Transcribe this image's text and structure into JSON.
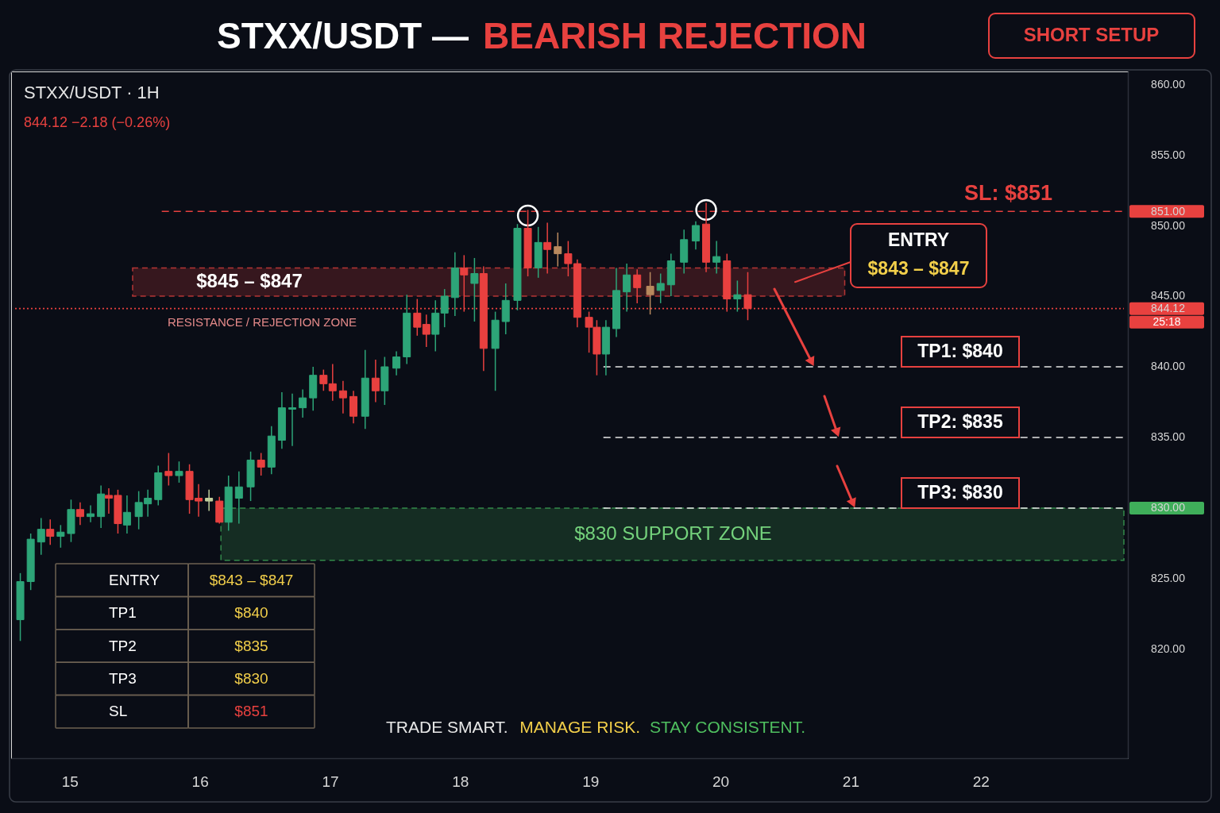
{
  "chart_data": {
    "type": "candlestick",
    "title": "STXX/USDT — BEARISH REJECTION",
    "subtitle": "STXX/USDT · 1H",
    "x": [
      14.62,
      14.7,
      14.78,
      14.85,
      14.93,
      15.01,
      15.08,
      15.16,
      15.24,
      15.3,
      15.37,
      15.44,
      15.53,
      15.6,
      15.68,
      15.76,
      15.84,
      15.92,
      15.99,
      16.07,
      16.15,
      16.22,
      16.3,
      16.39,
      16.47,
      16.55,
      16.63,
      16.71,
      16.79,
      16.87,
      16.95,
      17.02,
      17.1,
      17.18,
      17.27,
      17.35,
      17.42,
      17.51,
      17.59,
      17.67,
      17.74,
      17.81,
      17.88,
      17.96,
      18.03,
      18.11,
      18.18,
      18.27,
      18.35,
      18.44,
      18.52,
      18.6,
      18.67,
      18.75,
      18.83,
      18.9,
      18.99,
      19.05,
      19.12,
      19.2,
      19.28,
      19.36,
      19.46,
      19.54,
      19.62,
      19.72,
      19.81,
      19.89,
      19.97,
      20.05,
      20.13,
      20.21
    ],
    "ohlc": [
      [
        822.1,
        825.4,
        820.6,
        824.8
      ],
      [
        824.8,
        828.2,
        824.2,
        827.8
      ],
      [
        827.6,
        829.3,
        826.7,
        828.5
      ],
      [
        828.5,
        829.2,
        827.4,
        828.0
      ],
      [
        828.0,
        828.8,
        827.2,
        828.3
      ],
      [
        828.2,
        830.6,
        827.6,
        829.9
      ],
      [
        829.9,
        830.4,
        828.8,
        829.4
      ],
      [
        829.4,
        830.2,
        829.0,
        829.6
      ],
      [
        829.4,
        831.6,
        828.6,
        831.0
      ],
      [
        830.9,
        831.4,
        829.6,
        830.7
      ],
      [
        830.9,
        831.3,
        828.2,
        828.9
      ],
      [
        828.8,
        830.9,
        828.2,
        829.7
      ],
      [
        829.4,
        831.2,
        828.5,
        830.4
      ],
      [
        830.3,
        831.3,
        829.4,
        830.7
      ],
      [
        830.6,
        833.0,
        830.2,
        832.5
      ],
      [
        832.6,
        833.9,
        831.6,
        832.3
      ],
      [
        832.3,
        833.3,
        831.8,
        832.6
      ],
      [
        832.6,
        833.1,
        829.6,
        830.6
      ],
      [
        830.7,
        831.7,
        829.4,
        830.5
      ],
      [
        830.5,
        831.3,
        829.8,
        830.7
      ],
      [
        830.5,
        830.8,
        828.9,
        829.0
      ],
      [
        829.0,
        832.3,
        828.4,
        831.5
      ],
      [
        830.7,
        832.6,
        828.9,
        831.5
      ],
      [
        831.5,
        834.0,
        830.5,
        833.4
      ],
      [
        833.4,
        833.9,
        832.3,
        832.9
      ],
      [
        832.9,
        835.8,
        832.4,
        835.1
      ],
      [
        834.8,
        838.2,
        834.2,
        837.1
      ],
      [
        837.0,
        838.1,
        834.4,
        837.1
      ],
      [
        837.1,
        838.4,
        836.4,
        837.8
      ],
      [
        837.8,
        840.0,
        836.9,
        839.4
      ],
      [
        839.4,
        839.8,
        838.3,
        838.8
      ],
      [
        838.8,
        840.2,
        837.6,
        838.3
      ],
      [
        838.3,
        839.0,
        836.7,
        837.8
      ],
      [
        837.9,
        838.3,
        836.0,
        836.5
      ],
      [
        836.5,
        841.2,
        835.6,
        839.2
      ],
      [
        839.2,
        840.5,
        837.5,
        838.3
      ],
      [
        838.3,
        840.7,
        837.3,
        840.0
      ],
      [
        839.9,
        841.1,
        839.4,
        840.7
      ],
      [
        840.7,
        845.1,
        840.2,
        843.8
      ],
      [
        843.8,
        844.8,
        842.2,
        842.8
      ],
      [
        843.0,
        843.7,
        841.4,
        842.3
      ],
      [
        842.3,
        844.7,
        841.1,
        843.8
      ],
      [
        843.8,
        845.5,
        842.8,
        845.0
      ],
      [
        844.9,
        848.1,
        843.6,
        847.0
      ],
      [
        847.0,
        847.9,
        843.9,
        846.5
      ],
      [
        845.9,
        847.7,
        843.2,
        846.6
      ],
      [
        846.6,
        847.1,
        839.7,
        841.3
      ],
      [
        841.3,
        843.9,
        838.3,
        843.3
      ],
      [
        843.2,
        845.9,
        842.3,
        844.7
      ],
      [
        844.7,
        850.1,
        844.0,
        849.8
      ],
      [
        849.8,
        851.1,
        846.4,
        847.0
      ],
      [
        847.0,
        849.9,
        846.3,
        848.8
      ],
      [
        848.8,
        850.2,
        846.6,
        848.3
      ],
      [
        848.5,
        849.5,
        847.1,
        848.0
      ],
      [
        848.0,
        848.9,
        846.4,
        847.3
      ],
      [
        847.3,
        847.6,
        842.8,
        843.5
      ],
      [
        843.5,
        843.9,
        841.0,
        842.8
      ],
      [
        842.8,
        843.3,
        839.4,
        840.9
      ],
      [
        840.9,
        843.3,
        839.4,
        842.8
      ],
      [
        842.7,
        847.0,
        842.1,
        845.4
      ],
      [
        845.3,
        847.3,
        843.9,
        846.5
      ],
      [
        846.5,
        846.9,
        844.5,
        845.6
      ],
      [
        845.7,
        846.7,
        843.7,
        845.1
      ],
      [
        845.4,
        846.6,
        844.5,
        845.9
      ],
      [
        845.8,
        848.0,
        845.0,
        847.5
      ],
      [
        847.4,
        849.7,
        846.6,
        849.0
      ],
      [
        848.9,
        850.3,
        848.3,
        850.0
      ],
      [
        850.1,
        851.6,
        846.7,
        847.4
      ],
      [
        847.4,
        848.9,
        846.6,
        847.8
      ],
      [
        847.5,
        848.0,
        843.9,
        844.8
      ],
      [
        844.8,
        846.1,
        843.9,
        845.1
      ],
      [
        845.1,
        846.7,
        843.3,
        844.12
      ]
    ],
    "colors": [
      "#2da578",
      "#2da578",
      "#2da578",
      "#e8403f",
      "#2da578",
      "#2da578",
      "#e8403f",
      "#2da578",
      "#2da578",
      "#e8403f",
      "#e8403f",
      "#2da578",
      "#2da578",
      "#2da578",
      "#2da578",
      "#e8403f",
      "#2da578",
      "#e8403f",
      "#e8403f",
      "#c2cf9c",
      "#e8403f",
      "#2da578",
      "#2da578",
      "#2da578",
      "#e8403f",
      "#2da578",
      "#2da578",
      "#2da578",
      "#2da578",
      "#2da578",
      "#e8403f",
      "#e8403f",
      "#e8403f",
      "#e8403f",
      "#2da578",
      "#e8403f",
      "#2da578",
      "#2da578",
      "#2da578",
      "#e8403f",
      "#e8403f",
      "#2da578",
      "#2da578",
      "#2da578",
      "#e8403f",
      "#2da578",
      "#e8403f",
      "#2da578",
      "#2da578",
      "#2da578",
      "#e8403f",
      "#2da578",
      "#e8403f",
      "#b8895e",
      "#e8403f",
      "#e8403f",
      "#e8403f",
      "#e8403f",
      "#2da578",
      "#2da578",
      "#2da578",
      "#e8403f",
      "#b8895e",
      "#2da578",
      "#2da578",
      "#2da578",
      "#2da578",
      "#e8403f",
      "#2da578",
      "#e8403f",
      "#2da578",
      "#e8403f"
    ],
    "series": [
      {
        "type": "scatter",
        "x": [
          18.52,
          19.89
        ],
        "values": [
          850.7,
          851.1
        ],
        "color": "#ffffff"
      }
    ],
    "marker": "circle",
    "xlim": [
      14.58,
      23.1
    ],
    "xticks": [
      15,
      16,
      17,
      18,
      19,
      20,
      21,
      22
    ],
    "ylim": [
      812.3,
      860.9
    ],
    "yticks": [
      {
        "value": 820,
        "label": "820.00"
      },
      {
        "value": 825,
        "label": "825.00"
      },
      {
        "value": 830,
        "label": "830.00"
      },
      {
        "value": 835,
        "label": "835.00"
      },
      {
        "value": 840,
        "label": "840.00"
      },
      {
        "value": 844.12,
        "label": "844.12"
      },
      {
        "value": 845,
        "label": "845.00"
      },
      {
        "value": 850,
        "label": "850.00"
      },
      {
        "value": 851,
        "label": "851.00"
      },
      {
        "value": 855,
        "label": "855.00"
      },
      {
        "value": 860,
        "label": "860.00"
      }
    ],
    "ref_lines": [
      {
        "axis": "y",
        "value": 851,
        "label": "SL: $851",
        "color": "#e8413f",
        "line_style": "dashed"
      },
      {
        "axis": "y",
        "value": 844.12,
        "color": "#e8413f",
        "line_style": "dotted"
      },
      {
        "axis": "y",
        "value": 840,
        "label": "TP1: $840",
        "color": "#e6e6e6",
        "line_style": "dashed"
      },
      {
        "axis": "y",
        "value": 835,
        "label": "TP2: $835",
        "color": "#e6e6e6",
        "line_style": "dashed"
      },
      {
        "axis": "y",
        "value": 830,
        "label": "TP3: $830",
        "color": "#e6e6e6",
        "line_style": "dashed"
      }
    ],
    "bands": [
      {
        "axis": "y",
        "from": 845,
        "to": 847,
        "label": "$845 – $847\nRESISTANCE / REJECTION ZONE",
        "color": "#e8413f"
      },
      {
        "axis": "y",
        "from": 826.3,
        "to": 830,
        "label": "$830 SUPPORT ZONE",
        "color": "#3fae5a"
      }
    ],
    "annotations": [
      "844.12 −2.18 (−0.26%)",
      "ENTRY\n$843 – $847",
      "25:18",
      "SHORT SETUP",
      "ENTRY",
      "$843 – $847",
      "TP1",
      "$840",
      "TP2",
      "$835",
      "TP3",
      "$830",
      "SL",
      "$851",
      "TRADE SMART.",
      "MANAGE RISK.",
      "STAY CONSISTENT."
    ]
  }
}
